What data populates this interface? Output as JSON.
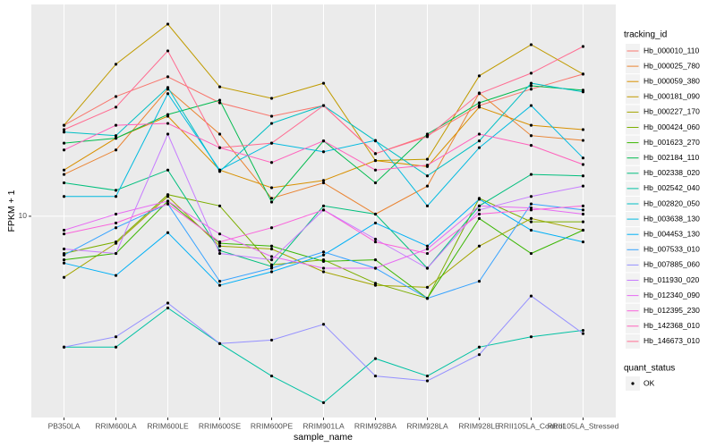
{
  "chart_data": {
    "type": "line",
    "x_label": "sample_name",
    "y_label": "FPKM + 1",
    "y_scale": "log",
    "ylim": [
      1.57,
      70.2
    ],
    "yticks": [
      10
    ],
    "grid": true,
    "legend_title": "tracking_id",
    "legend_position": "right",
    "point_color": "#000000",
    "legend2_title": "quant_status",
    "legend2_labels": [
      "OK"
    ],
    "categories": [
      "PB350LA",
      "RRIM600LA",
      "RRIM600LE",
      "RRIM600SE",
      "RRIM600PE",
      "RRIM901LA",
      "RRIM928BA",
      "RRIM928LA",
      "RRIM928LE",
      "RRII105LA_Control",
      "RRII105LA_Stressed"
    ],
    "series": [
      {
        "name": "Hb_000010_110",
        "color": "#F8766D",
        "values": [
          23.1,
          30.1,
          36.1,
          28.4,
          25.1,
          27.7,
          17.8,
          21.0,
          27.7,
          32.2,
          37.0
        ]
      },
      {
        "name": "Hb_000025_780",
        "color": "#EA8331",
        "values": [
          14.7,
          18.4,
          32.2,
          21.3,
          11.8,
          13.6,
          10.2,
          13.2,
          31.1,
          21.0,
          20.1
        ]
      },
      {
        "name": "Hb_000059_380",
        "color": "#D89000",
        "values": [
          15.3,
          20.5,
          25.1,
          15.3,
          13.0,
          13.9,
          16.7,
          15.8,
          27.3,
          23.1,
          22.2
        ]
      },
      {
        "name": "Hb_000181_090",
        "color": "#C09B00",
        "values": [
          23.1,
          40.5,
          58.6,
          32.9,
          29.6,
          34.0,
          16.7,
          16.9,
          36.4,
          48.5,
          37.0
        ]
      },
      {
        "name": "Hb_000227_170",
        "color": "#A3A500",
        "values": [
          5.7,
          7.8,
          12.0,
          7.6,
          7.4,
          6.0,
          5.3,
          5.2,
          7.6,
          9.8,
          8.8
        ]
      },
      {
        "name": "Hb_000424_060",
        "color": "#7CAE00",
        "values": [
          7.1,
          7.9,
          12.2,
          11.0,
          6.4,
          6.7,
          5.4,
          4.7,
          11.8,
          9.5,
          9.5
        ]
      },
      {
        "name": "Hb_001623_270",
        "color": "#39B600",
        "values": [
          6.7,
          7.1,
          11.5,
          7.8,
          7.6,
          6.6,
          6.7,
          4.7,
          9.8,
          7.1,
          8.8
        ]
      },
      {
        "name": "Hb_002184_110",
        "color": "#00BB4E",
        "values": [
          19.6,
          20.5,
          25.5,
          29.1,
          11.4,
          20.0,
          13.6,
          21.3,
          28.4,
          33.2,
          31.9
        ]
      },
      {
        "name": "Hb_002338_020",
        "color": "#00BF7D",
        "values": [
          13.6,
          12.7,
          15.3,
          7.3,
          6.3,
          11.0,
          10.2,
          6.2,
          11.0,
          14.7,
          14.5
        ]
      },
      {
        "name": "Hb_002542_040",
        "color": "#00C1A3",
        "values": [
          3.0,
          3.0,
          4.3,
          3.1,
          2.3,
          1.8,
          2.7,
          2.3,
          3.0,
          3.3,
          3.5
        ]
      },
      {
        "name": "Hb_002820_050",
        "color": "#00BFC4",
        "values": [
          21.7,
          21.0,
          32.7,
          15.1,
          23.5,
          27.7,
          20.0,
          14.5,
          20.0,
          34.0,
          31.4
        ]
      },
      {
        "name": "Hb_003638_130",
        "color": "#00BAE0",
        "values": [
          12.0,
          12.0,
          30.9,
          15.3,
          19.6,
          18.1,
          20.1,
          11.0,
          18.8,
          27.7,
          17.1
        ]
      },
      {
        "name": "Hb_004453_130",
        "color": "#00B0F6",
        "values": [
          6.5,
          5.8,
          8.6,
          5.3,
          6.0,
          7.0,
          9.4,
          7.6,
          11.7,
          8.8,
          7.9
        ]
      },
      {
        "name": "Hb_007533_010",
        "color": "#35A2FF",
        "values": [
          7.0,
          9.0,
          11.2,
          5.5,
          6.2,
          7.2,
          6.2,
          4.7,
          5.5,
          11.2,
          10.6
        ]
      },
      {
        "name": "Hb_007885_060",
        "color": "#9590FF",
        "values": [
          3.0,
          3.3,
          4.5,
          3.1,
          3.2,
          3.7,
          2.3,
          2.2,
          2.8,
          4.8,
          3.4
        ]
      },
      {
        "name": "Hb_011930_020",
        "color": "#C77CFF",
        "values": [
          7.4,
          7.1,
          21.3,
          7.1,
          6.7,
          10.6,
          8.1,
          6.2,
          10.6,
          12.0,
          13.2
        ]
      },
      {
        "name": "Hb_012340_090",
        "color": "#E76BF3",
        "values": [
          8.8,
          10.2,
          11.5,
          8.5,
          6.9,
          6.2,
          6.2,
          7.4,
          11.0,
          10.8,
          10.2
        ]
      },
      {
        "name": "Hb_012395_230",
        "color": "#FA62DB",
        "values": [
          8.5,
          9.4,
          11.2,
          7.9,
          9.0,
          10.6,
          7.9,
          7.1,
          10.2,
          10.6,
          11.0
        ]
      },
      {
        "name": "Hb_142368_010",
        "color": "#FF62BC",
        "values": [
          18.4,
          23.1,
          23.5,
          18.8,
          16.4,
          20.0,
          15.3,
          16.0,
          21.3,
          19.2,
          16.1
        ]
      },
      {
        "name": "Hb_146673_010",
        "color": "#FF6C91",
        "values": [
          22.2,
          27.3,
          45.8,
          18.8,
          19.6,
          27.7,
          17.8,
          20.8,
          30.9,
          37.3,
          47.7
        ]
      }
    ]
  }
}
